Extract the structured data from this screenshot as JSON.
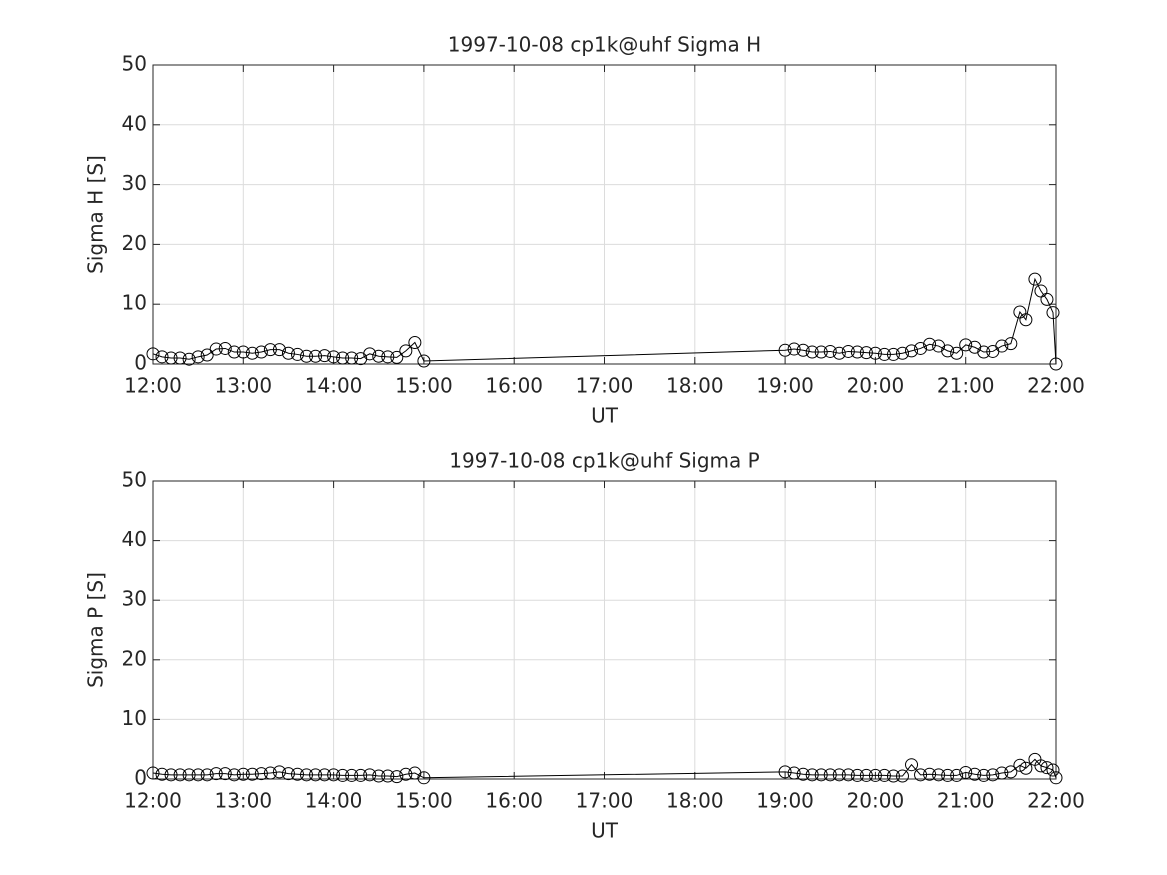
{
  "chart_data": [
    {
      "type": "line",
      "title": "1997-10-08  cp1k@uhf Sigma H",
      "xlabel": "UT",
      "ylabel": "Sigma H [S]",
      "x": [
        "12:00",
        "12:06",
        "12:12",
        "12:18",
        "12:24",
        "12:30",
        "12:36",
        "12:42",
        "12:48",
        "12:54",
        "13:00",
        "13:06",
        "13:12",
        "13:18",
        "13:24",
        "13:30",
        "13:36",
        "13:42",
        "13:48",
        "13:54",
        "14:00",
        "14:06",
        "14:12",
        "14:18",
        "14:24",
        "14:30",
        "14:36",
        "14:42",
        "14:48",
        "14:54",
        "15:00",
        "19:00",
        "19:06",
        "19:12",
        "19:18",
        "19:24",
        "19:30",
        "19:36",
        "19:42",
        "19:48",
        "19:54",
        "20:00",
        "20:06",
        "20:12",
        "20:18",
        "20:24",
        "20:30",
        "20:36",
        "20:42",
        "20:48",
        "20:54",
        "21:00",
        "21:06",
        "21:12",
        "21:18",
        "21:24",
        "21:30",
        "21:36",
        "21:40",
        "21:46",
        "21:50",
        "21:54",
        "21:58",
        "22:00"
      ],
      "values": [
        1.7,
        1.2,
        1.0,
        1.0,
        0.8,
        1.2,
        1.5,
        2.5,
        2.6,
        2.0,
        2.0,
        1.8,
        2.0,
        2.4,
        2.4,
        1.8,
        1.6,
        1.3,
        1.3,
        1.4,
        1.2,
        1.0,
        1.0,
        0.9,
        1.7,
        1.3,
        1.2,
        1.1,
        2.2,
        3.6,
        0.5,
        2.3,
        2.5,
        2.3,
        2.0,
        2.0,
        2.1,
        1.8,
        2.1,
        2.0,
        1.9,
        1.8,
        1.6,
        1.6,
        1.8,
        2.2,
        2.6,
        3.3,
        3.0,
        2.2,
        1.8,
        3.2,
        2.8,
        2.0,
        2.1,
        3.0,
        3.4,
        8.7,
        7.4,
        14.2,
        12.2,
        10.8,
        8.6,
        0
      ],
      "color": "#000000",
      "marker": "circle",
      "xlim": [
        "12:00",
        "22:00"
      ],
      "xticks": [
        "12:00",
        "13:00",
        "14:00",
        "15:00",
        "16:00",
        "17:00",
        "18:00",
        "19:00",
        "20:00",
        "21:00",
        "22:00"
      ],
      "ylim": [
        0,
        50
      ],
      "yticks": [
        0,
        10,
        20,
        30,
        40,
        50
      ],
      "grid": true
    },
    {
      "type": "line",
      "title": "1997-10-08  cp1k@uhf Sigma P",
      "xlabel": "UT",
      "ylabel": "Sigma P [S]",
      "x": [
        "12:00",
        "12:06",
        "12:12",
        "12:18",
        "12:24",
        "12:30",
        "12:36",
        "12:42",
        "12:48",
        "12:54",
        "13:00",
        "13:06",
        "13:12",
        "13:18",
        "13:24",
        "13:30",
        "13:36",
        "13:42",
        "13:48",
        "13:54",
        "14:00",
        "14:06",
        "14:12",
        "14:18",
        "14:24",
        "14:30",
        "14:36",
        "14:42",
        "14:48",
        "14:54",
        "15:00",
        "19:00",
        "19:06",
        "19:12",
        "19:18",
        "19:24",
        "19:30",
        "19:36",
        "19:42",
        "19:48",
        "19:54",
        "20:00",
        "20:06",
        "20:12",
        "20:18",
        "20:24",
        "20:30",
        "20:36",
        "20:42",
        "20:48",
        "20:54",
        "21:00",
        "21:06",
        "21:12",
        "21:18",
        "21:24",
        "21:30",
        "21:36",
        "21:40",
        "21:46",
        "21:50",
        "21:54",
        "21:58",
        "22:00"
      ],
      "values": [
        1.0,
        0.8,
        0.7,
        0.7,
        0.7,
        0.7,
        0.7,
        0.9,
        0.9,
        0.7,
        0.8,
        0.8,
        0.9,
        1.0,
        1.2,
        0.9,
        0.8,
        0.7,
        0.7,
        0.7,
        0.7,
        0.6,
        0.6,
        0.6,
        0.7,
        0.5,
        0.5,
        0.4,
        0.8,
        1.0,
        0.2,
        1.2,
        1.0,
        0.8,
        0.7,
        0.7,
        0.7,
        0.7,
        0.7,
        0.6,
        0.6,
        0.6,
        0.6,
        0.5,
        0.5,
        2.4,
        0.7,
        0.8,
        0.7,
        0.6,
        0.6,
        1.1,
        0.8,
        0.6,
        0.7,
        1.0,
        1.2,
        2.3,
        1.8,
        3.3,
        2.2,
        1.9,
        1.5,
        0.2
      ],
      "color": "#000000",
      "marker": "circle",
      "xlim": [
        "12:00",
        "22:00"
      ],
      "xticks": [
        "12:00",
        "13:00",
        "14:00",
        "15:00",
        "16:00",
        "17:00",
        "18:00",
        "19:00",
        "20:00",
        "21:00",
        "22:00"
      ],
      "ylim": [
        0,
        50
      ],
      "yticks": [
        0,
        10,
        20,
        30,
        40,
        50
      ],
      "grid": true
    }
  ]
}
